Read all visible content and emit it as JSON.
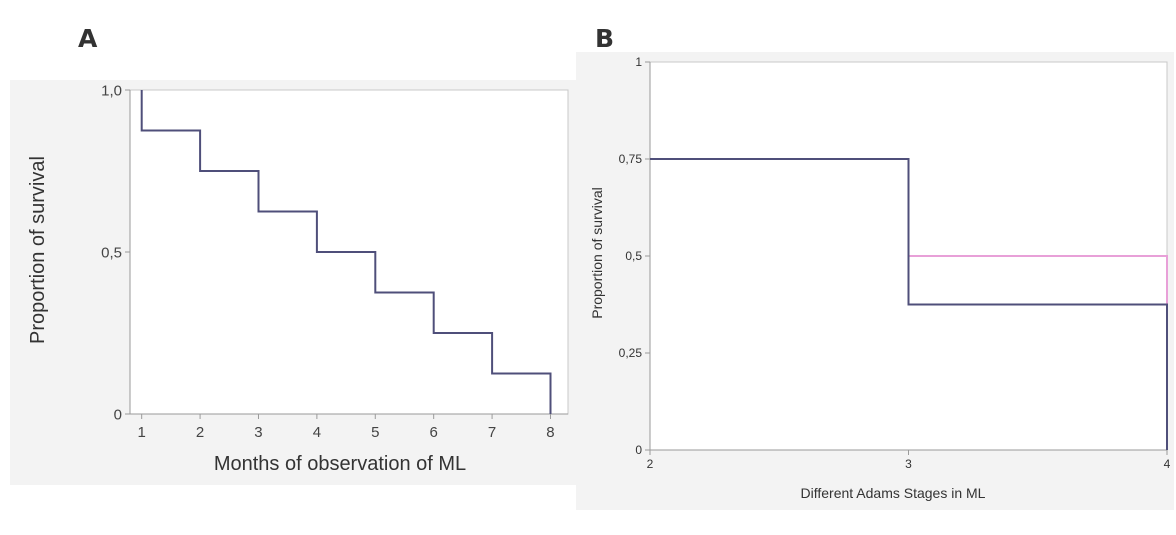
{
  "panels": {
    "a": {
      "letter": "A"
    },
    "b": {
      "letter": "B"
    }
  },
  "chart_data": [
    {
      "type": "line",
      "subtype": "step",
      "title": "",
      "xlabel": "Months of observation of ML",
      "ylabel": "Proportion of survival",
      "xlim": [
        0.8,
        8.3
      ],
      "ylim": [
        0,
        1
      ],
      "x_ticks": [
        "1",
        "2",
        "3",
        "4",
        "5",
        "6",
        "7",
        "8"
      ],
      "y_ticks": [
        "0",
        "0,5",
        "1,0"
      ],
      "series": [
        {
          "color": "#4f4f7a",
          "x": [
            1,
            1,
            2,
            2,
            3,
            3,
            4,
            4,
            5,
            5,
            6,
            6,
            7,
            7,
            8,
            8
          ],
          "y": [
            1.0,
            0.875,
            0.875,
            0.75,
            0.75,
            0.625,
            0.625,
            0.5,
            0.5,
            0.375,
            0.375,
            0.25,
            0.25,
            0.125,
            0.125,
            0
          ]
        }
      ],
      "grid": false,
      "legend": "none"
    },
    {
      "type": "line",
      "subtype": "step",
      "title": "",
      "xlabel": "Different Adams Stages in ML",
      "ylabel": "Proportion of survival",
      "xlim": [
        2,
        4
      ],
      "ylim": [
        0,
        1
      ],
      "x_ticks": [
        "2",
        "3",
        "4"
      ],
      "y_ticks": [
        "0",
        "0,25",
        "0,5",
        "0,75",
        "1"
      ],
      "series": [
        {
          "color": "#e8a0d8",
          "x": [
            2,
            3,
            3,
            4,
            4
          ],
          "y": [
            0.75,
            0.75,
            0.5,
            0.5,
            0
          ]
        },
        {
          "color": "#4f4f7a",
          "x": [
            2,
            3,
            3,
            4,
            4
          ],
          "y": [
            0.75,
            0.75,
            0.375,
            0.375,
            0
          ]
        }
      ],
      "grid": false,
      "legend": "none"
    }
  ]
}
